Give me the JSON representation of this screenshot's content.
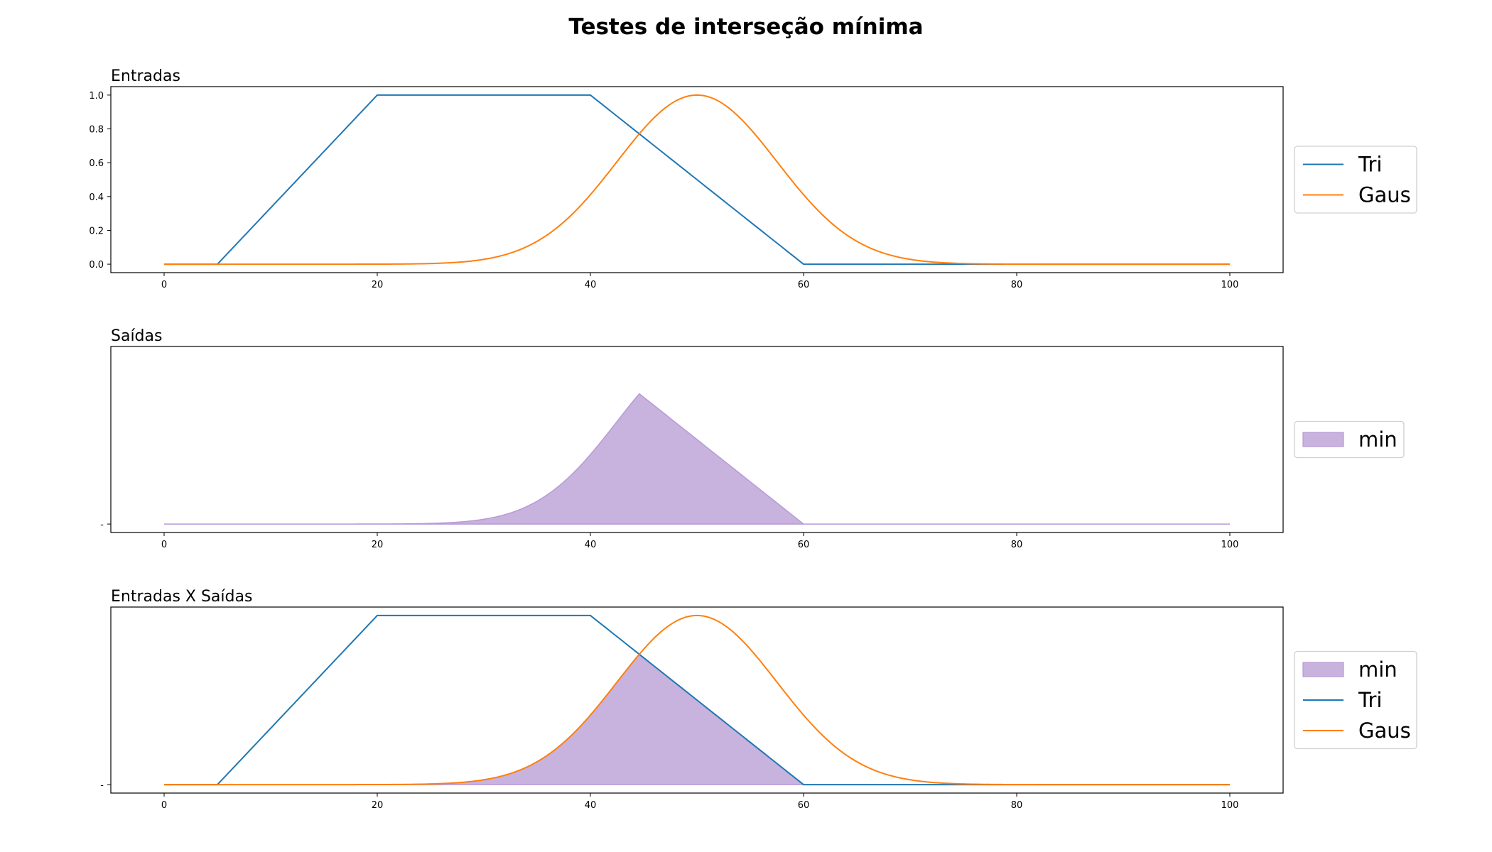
{
  "figure": {
    "title": "Testes de interseção mínima",
    "colors": {
      "tri": "#1f77b4",
      "gaus": "#ff7f0e",
      "min_fill": "#c8b2de",
      "min_edge": "#b89ad6"
    }
  },
  "chart_data": [
    {
      "type": "line",
      "title": "Entradas",
      "xlabel": "",
      "ylabel": "",
      "xlim": [
        -5,
        105
      ],
      "ylim": [
        -0.05,
        1.05
      ],
      "x_ticks": [
        "0",
        "20",
        "40",
        "60",
        "80",
        "100"
      ],
      "y_ticks": [
        "0.0",
        "0.2",
        "0.4",
        "0.6",
        "0.8",
        "1.0"
      ],
      "grid": false,
      "legend_position": "right",
      "series": [
        {
          "name": "Tri",
          "kind": "trapezoid",
          "params": [
            5,
            20,
            40,
            60
          ],
          "x_range": [
            0,
            100
          ],
          "color": "#1f77b4"
        },
        {
          "name": "Gaus",
          "kind": "gaussian",
          "mean": 50,
          "sigma": 7.5,
          "x_range": [
            0,
            100
          ],
          "color": "#ff7f0e"
        }
      ],
      "legend": [
        "Tri",
        "Gaus"
      ]
    },
    {
      "type": "area",
      "title": "Saídas",
      "xlabel": "",
      "ylabel": "",
      "xlim": [
        -5,
        105
      ],
      "x_ticks": [
        "0",
        "20",
        "40",
        "60",
        "80",
        "100"
      ],
      "y_ticks": [
        "-"
      ],
      "grid": false,
      "legend_position": "right",
      "series": [
        {
          "name": "min",
          "kind": "min",
          "of": [
            "Tri",
            "Gaus"
          ],
          "peak_x": 45,
          "peak_y": 0.75,
          "x_range": [
            0,
            100
          ],
          "color": "#c8b2de"
        }
      ],
      "legend": [
        "min"
      ]
    },
    {
      "type": "line",
      "title": "Entradas X Saídas",
      "xlabel": "",
      "ylabel": "",
      "xlim": [
        -5,
        105
      ],
      "x_ticks": [
        "0",
        "20",
        "40",
        "60",
        "80",
        "100"
      ],
      "y_ticks": [
        "-"
      ],
      "grid": false,
      "legend_position": "right",
      "series": [
        {
          "name": "min",
          "kind": "min",
          "of": [
            "Tri",
            "Gaus"
          ],
          "x_range": [
            0,
            100
          ],
          "color": "#c8b2de"
        },
        {
          "name": "Tri",
          "kind": "trapezoid",
          "params": [
            5,
            20,
            40,
            60
          ],
          "x_range": [
            0,
            100
          ],
          "color": "#1f77b4"
        },
        {
          "name": "Gaus",
          "kind": "gaussian",
          "mean": 50,
          "sigma": 7.5,
          "x_range": [
            0,
            100
          ],
          "color": "#ff7f0e"
        }
      ],
      "legend": [
        "min",
        "Tri",
        "Gaus"
      ]
    }
  ]
}
